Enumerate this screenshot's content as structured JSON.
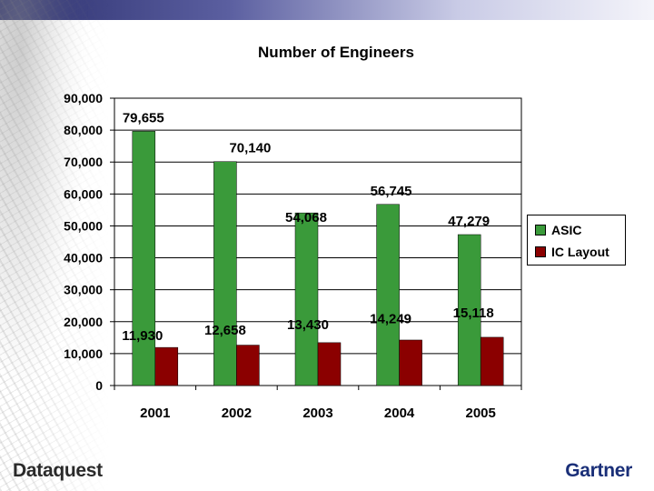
{
  "brand": {
    "left": "Dataquest",
    "right": "Gartner"
  },
  "colors": {
    "asic": "#3a9a3a",
    "ic_layout": "#8b0000",
    "grid": "#000000"
  },
  "chart_data": {
    "type": "bar",
    "title": "Number of Engineers",
    "categories": [
      "2001",
      "2002",
      "2003",
      "2004",
      "2005"
    ],
    "series": [
      {
        "name": "ASIC",
        "values": [
          79655,
          70140,
          54068,
          56745,
          47279
        ],
        "labels": [
          "79,655",
          "70,140",
          "54,068",
          "56,745",
          "47,279"
        ]
      },
      {
        "name": "IC Layout",
        "values": [
          11930,
          12658,
          13430,
          14249,
          15118
        ],
        "labels": [
          "11,930",
          "12,658",
          "13,430",
          "14,249",
          "15,118"
        ]
      }
    ],
    "yticks": [
      0,
      10000,
      20000,
      30000,
      40000,
      50000,
      60000,
      70000,
      80000,
      90000
    ],
    "ytick_labels": [
      "0",
      "10,000",
      "20,000",
      "30,000",
      "40,000",
      "50,000",
      "60,000",
      "70,000",
      "80,000",
      "90,000"
    ],
    "ylim": [
      0,
      90000
    ],
    "xlabel": "",
    "ylabel": "",
    "grid": true,
    "legend_position": "right"
  }
}
